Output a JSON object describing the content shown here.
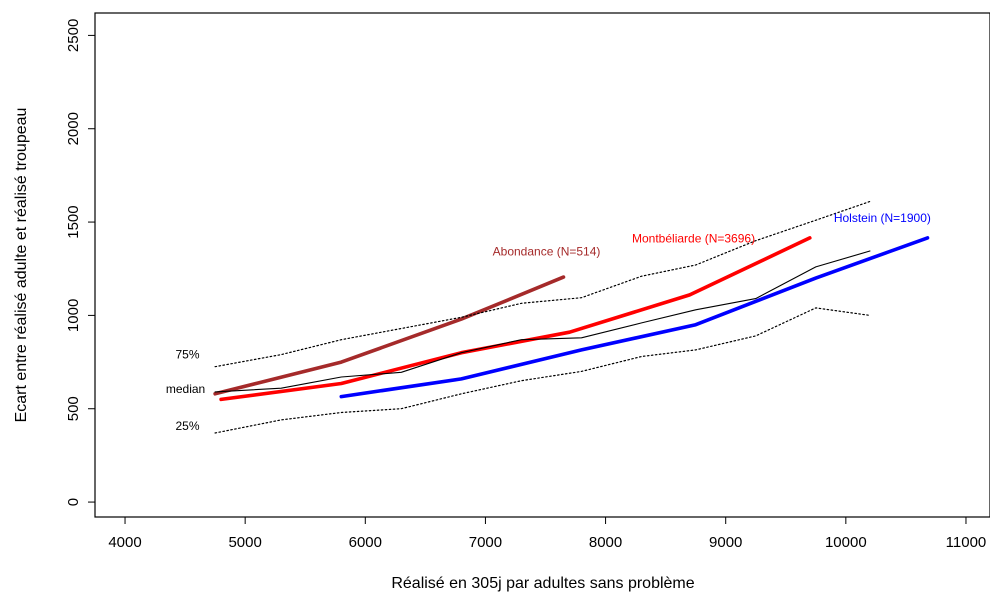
{
  "chart_data": {
    "type": "line",
    "title": "",
    "xlabel": "Réalisé en 305j par adultes sans problème",
    "ylabel": "Ecart entre réalisé adulte et réalisé troupeau",
    "xlim": [
      3750,
      11200
    ],
    "ylim": [
      -80,
      2620
    ],
    "xticks": [
      4000,
      5000,
      6000,
      7000,
      8000,
      9000,
      10000,
      11000
    ],
    "yticks": [
      0,
      500,
      1000,
      1500,
      2000,
      2500
    ],
    "grid": false,
    "series": [
      {
        "key": "abondance",
        "name": "Abondance (N=514)",
        "color": "#A52A2A",
        "style": "thick",
        "x": [
          4750,
          5800,
          6800,
          7650
        ],
        "y": [
          580,
          750,
          980,
          1205
        ]
      },
      {
        "key": "montbeliarde",
        "name": "Montbéliarde (N=3696)",
        "color": "#FF0000",
        "style": "thick",
        "x": [
          4800,
          5800,
          6800,
          7700,
          8700,
          9700
        ],
        "y": [
          550,
          635,
          800,
          910,
          1110,
          1415
        ]
      },
      {
        "key": "holstein",
        "name": "Holstein (N=1900)",
        "color": "#0000FF",
        "style": "thick",
        "x": [
          5800,
          6800,
          7800,
          8750,
          9750,
          10680
        ],
        "y": [
          565,
          660,
          815,
          950,
          1200,
          1415
        ]
      },
      {
        "key": "median",
        "name": "median",
        "color": "#000000",
        "style": "thin",
        "x": [
          4750,
          5300,
          5800,
          6300,
          6800,
          7300,
          7800,
          8300,
          8750,
          9250,
          9750,
          10200
        ],
        "y": [
          590,
          610,
          670,
          695,
          800,
          870,
          880,
          960,
          1030,
          1090,
          1260,
          1345
        ]
      },
      {
        "key": "p75",
        "name": "75%",
        "color": "#000000",
        "style": "dotted",
        "x": [
          4750,
          5300,
          5800,
          6300,
          6800,
          7300,
          7800,
          8300,
          8750,
          9250,
          9750,
          10200
        ],
        "y": [
          725,
          790,
          870,
          930,
          990,
          1065,
          1095,
          1210,
          1270,
          1400,
          1510,
          1610
        ]
      },
      {
        "key": "p25",
        "name": "25%",
        "color": "#000000",
        "style": "dotted",
        "x": [
          4750,
          5300,
          5800,
          6300,
          6800,
          7300,
          7800,
          8300,
          8750,
          9250,
          9750,
          10200
        ],
        "y": [
          370,
          440,
          480,
          500,
          580,
          650,
          700,
          780,
          815,
          890,
          1040,
          1000
        ]
      }
    ],
    "annotations": [
      {
        "key": "abondance_label",
        "text": "Abondance (N=514)",
        "color": "#A52A2A",
        "x": 7060,
        "y": 1320,
        "anchor": "start"
      },
      {
        "key": "montbeliarde_label",
        "text": "Montbéliarde (N=3696)",
        "color": "#FF0000",
        "x": 8220,
        "y": 1390,
        "anchor": "start"
      },
      {
        "key": "holstein_label",
        "text": "Holstein (N=1900)",
        "color": "#0000FF",
        "x": 9900,
        "y": 1500,
        "anchor": "start"
      },
      {
        "key": "p75_label",
        "text": "75%",
        "color": "#000000",
        "x": 4420,
        "y": 770,
        "anchor": "start"
      },
      {
        "key": "median_label",
        "text": "median",
        "color": "#000000",
        "x": 4340,
        "y": 585,
        "anchor": "start"
      },
      {
        "key": "p25_label",
        "text": "25%",
        "color": "#000000",
        "x": 4420,
        "y": 385,
        "anchor": "start"
      }
    ]
  }
}
